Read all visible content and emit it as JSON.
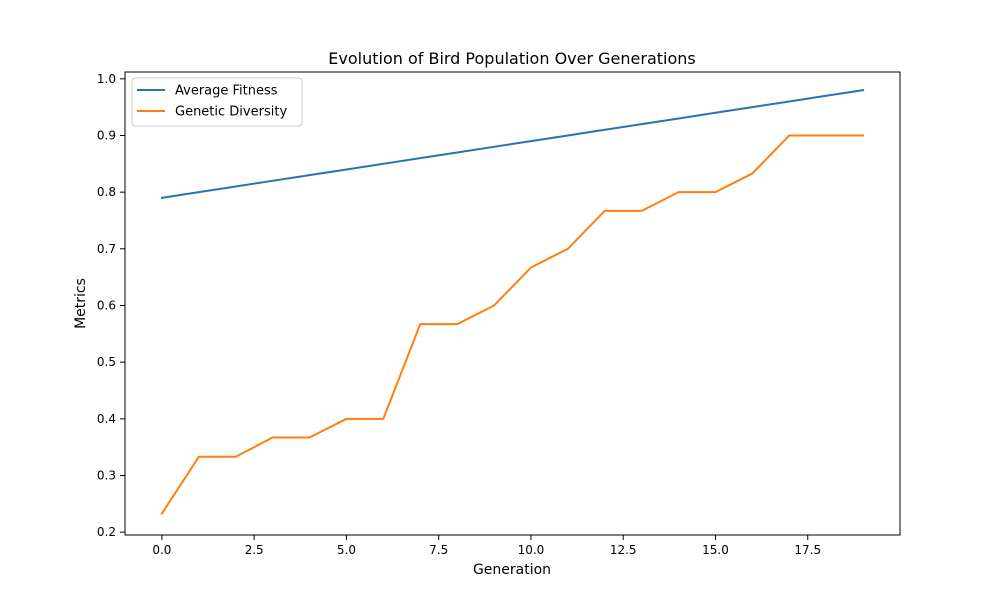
{
  "chart_data": {
    "type": "line",
    "title": "Evolution of Bird Population Over Generations",
    "xlabel": "Generation",
    "ylabel": "Metrics",
    "xlim": [
      -1,
      20
    ],
    "ylim": [
      0.195,
      1.012
    ],
    "xticks": [
      "0.0",
      "2.5",
      "5.0",
      "7.5",
      "10.0",
      "12.5",
      "15.0",
      "17.5"
    ],
    "yticks": [
      "0.2",
      "0.3",
      "0.4",
      "0.5",
      "0.6",
      "0.7",
      "0.8",
      "0.9",
      "1.0"
    ],
    "grid": false,
    "legend_position": "upper left",
    "x": [
      0,
      1,
      2,
      3,
      4,
      5,
      6,
      7,
      8,
      9,
      10,
      11,
      12,
      13,
      14,
      15,
      16,
      17,
      18,
      19
    ],
    "series": [
      {
        "name": "Average Fitness",
        "color": "#1f77b4",
        "values": [
          0.79,
          0.8,
          0.81,
          0.82,
          0.83,
          0.84,
          0.85,
          0.86,
          0.87,
          0.88,
          0.89,
          0.9,
          0.91,
          0.92,
          0.93,
          0.94,
          0.95,
          0.96,
          0.97,
          0.98
        ]
      },
      {
        "name": "Genetic Diversity",
        "color": "#ff7f0e",
        "values": [
          0.233,
          0.333,
          0.333,
          0.367,
          0.367,
          0.4,
          0.4,
          0.567,
          0.567,
          0.6,
          0.667,
          0.7,
          0.767,
          0.767,
          0.8,
          0.8,
          0.833,
          0.9,
          0.9,
          0.9
        ]
      }
    ]
  }
}
